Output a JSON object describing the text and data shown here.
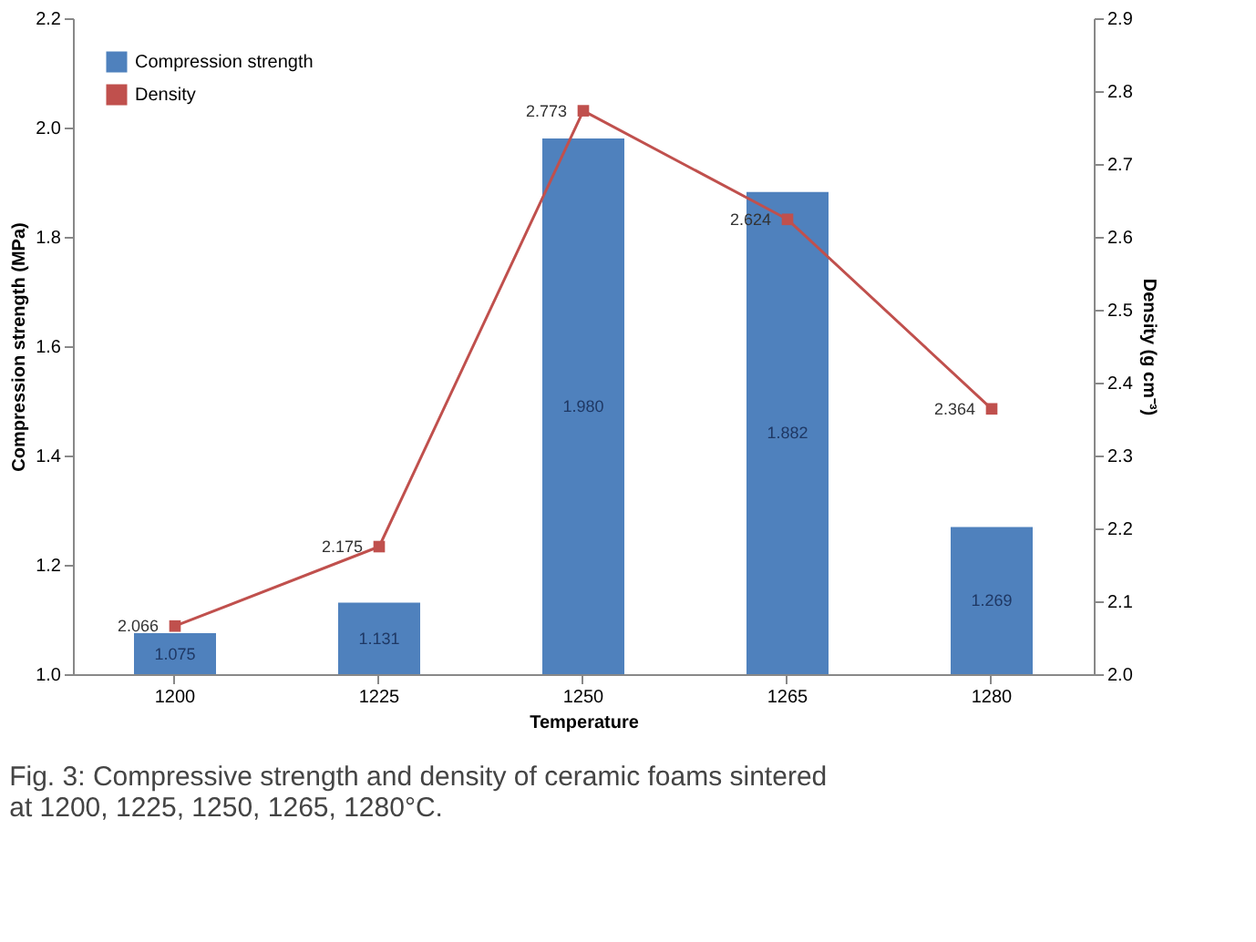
{
  "chart_data": {
    "type": "bar",
    "xlabel": "Temperature",
    "ylabel": "Compression strength (MPa)",
    "y2label": "Density (g cm⁻³)",
    "categories": [
      "1200",
      "1225",
      "1250",
      "1265",
      "1280"
    ],
    "series": [
      {
        "name": "Compression strength",
        "color": "#4f81bd",
        "values": [
          1.075,
          1.131,
          1.98,
          1.882,
          1.269
        ],
        "value_labels": [
          "1.075",
          "1.131",
          "1.980",
          "1.882",
          "1.269"
        ]
      },
      {
        "name": "Density",
        "type": "line",
        "axis": "y2",
        "color": "#c0504d",
        "marker": "square",
        "values": [
          2.066,
          2.175,
          2.773,
          2.624,
          2.364
        ],
        "value_labels": [
          "2.066",
          "2.175",
          "2.773",
          "2.624",
          "2.364"
        ]
      }
    ],
    "ylim": [
      1.0,
      2.2
    ],
    "yticks": [
      {
        "value": 1,
        "label": "1.0"
      },
      1.2,
      1.4,
      1.6,
      1.8,
      {
        "value": 2,
        "label": "2.0"
      },
      2.2
    ],
    "y2lim": [
      2.0,
      2.9
    ],
    "y2ticks": [
      {
        "value": 2,
        "label": "2.0"
      },
      2.1,
      2.2,
      2.3,
      2.4,
      2.5,
      2.6,
      2.7,
      2.8,
      2.9
    ],
    "grid": false,
    "legend": "top left",
    "annotations": [
      "Fig. 3: Compressive strength and density of ceramic foams sintered at 1200, 1225, 1250, 1265, 1280°C."
    ]
  }
}
